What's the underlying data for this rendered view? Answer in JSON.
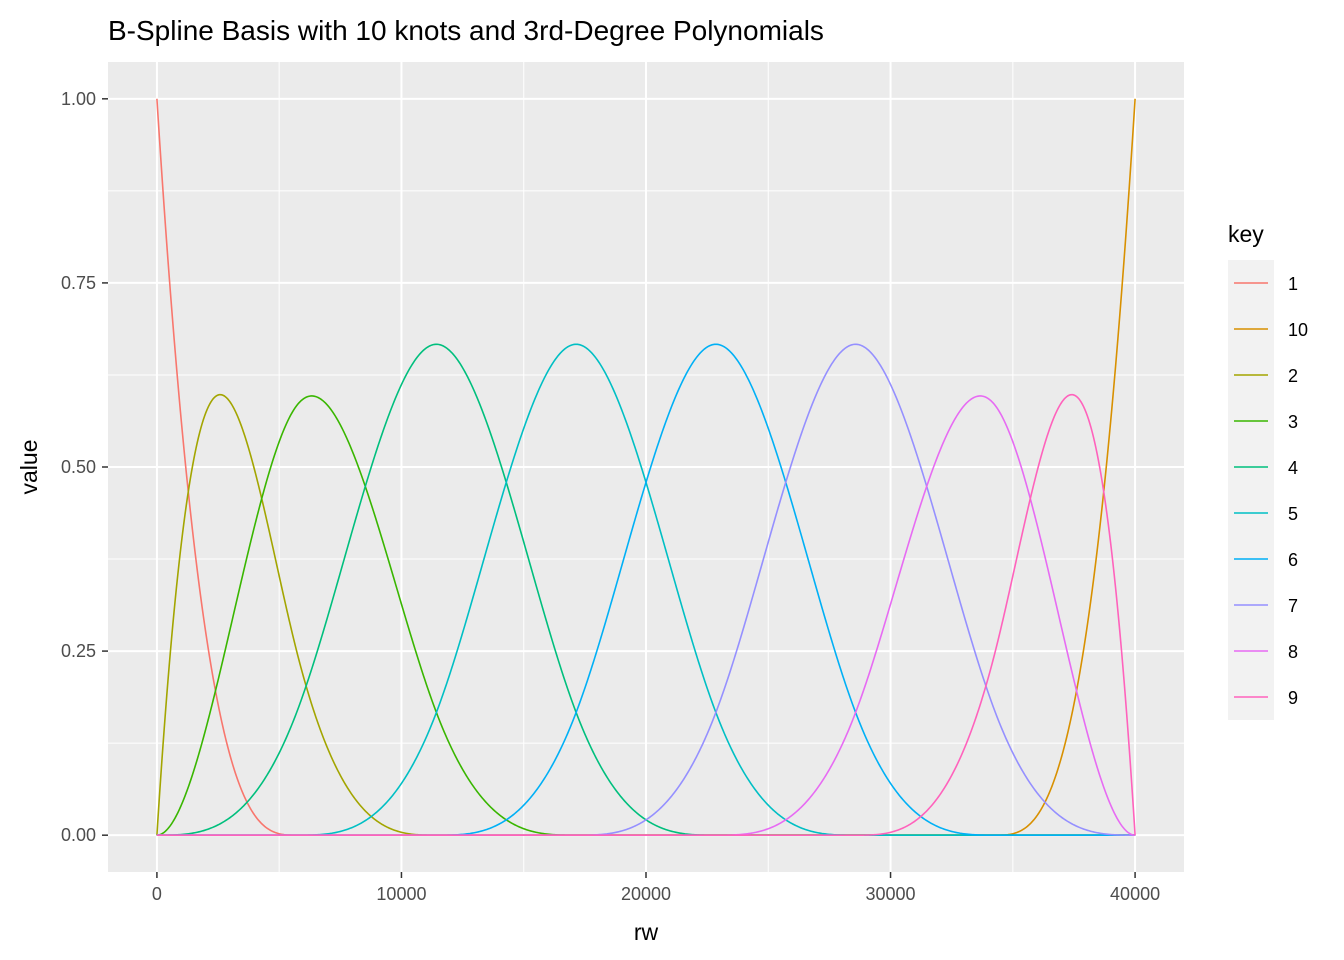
{
  "chart_data": {
    "type": "line",
    "title": "B-Spline Basis with 10 knots and 3rd-Degree Polynomials",
    "xlabel": "rw",
    "ylabel": "value",
    "xlim": [
      -2000,
      42000
    ],
    "ylim": [
      -0.05,
      1.05
    ],
    "x_ticks": [
      0,
      10000,
      20000,
      30000,
      40000
    ],
    "x_tick_labels": [
      "0",
      "10000",
      "20000",
      "30000",
      "40000"
    ],
    "y_ticks": [
      0,
      0.25,
      0.5,
      0.75,
      1
    ],
    "y_tick_labels": [
      "0.00",
      "0.25",
      "0.50",
      "0.75",
      "1.00"
    ],
    "grid": true,
    "legend": {
      "title": "key",
      "placement": "right"
    },
    "spline": {
      "degree": 3,
      "x_min": 0,
      "x_max": 40000,
      "interior_knots": 6
    },
    "series": [
      {
        "name": "1",
        "basis_index": 1,
        "color": "#F8766D"
      },
      {
        "name": "10",
        "basis_index": 10,
        "color": "#D89000"
      },
      {
        "name": "2",
        "basis_index": 2,
        "color": "#A3A500"
      },
      {
        "name": "3",
        "basis_index": 3,
        "color": "#39B600"
      },
      {
        "name": "4",
        "basis_index": 4,
        "color": "#00BF7D"
      },
      {
        "name": "5",
        "basis_index": 5,
        "color": "#00BFC4"
      },
      {
        "name": "6",
        "basis_index": 6,
        "color": "#00B0F6"
      },
      {
        "name": "7",
        "basis_index": 7,
        "color": "#9590FF"
      },
      {
        "name": "8",
        "basis_index": 8,
        "color": "#E76BF3"
      },
      {
        "name": "9",
        "basis_index": 9,
        "color": "#FF62BC"
      }
    ]
  }
}
